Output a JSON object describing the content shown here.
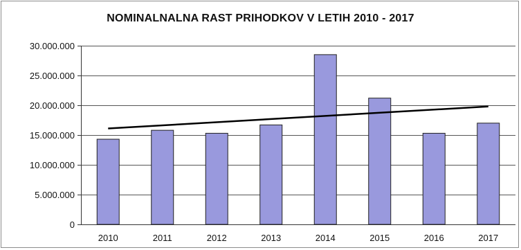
{
  "chart_data": {
    "type": "bar",
    "title": "NOMINALNALNA RAST PRIHODKOV V LETIH 2010 - 2017",
    "xlabel": "",
    "ylabel": "",
    "categories": [
      "2010",
      "2011",
      "2012",
      "2013",
      "2014",
      "2015",
      "2016",
      "2017"
    ],
    "values": [
      14300000,
      15800000,
      15300000,
      16700000,
      28500000,
      21200000,
      15300000,
      17000000
    ],
    "ylim": [
      0,
      30000000
    ],
    "y_ticks": [
      0,
      5000000,
      10000000,
      15000000,
      20000000,
      25000000,
      30000000
    ],
    "y_tick_labels": [
      "0",
      "5.000.000",
      "10.000.000",
      "15.000.000",
      "20.000.000",
      "25.000.000",
      "30.000.000"
    ],
    "trendline": {
      "type": "linear",
      "start": 16100000,
      "end": 19800000
    },
    "grid": true,
    "legend": "none",
    "bar_color": "#9999dd",
    "bar_edge_color": "#202020",
    "trend_color": "#000000"
  }
}
